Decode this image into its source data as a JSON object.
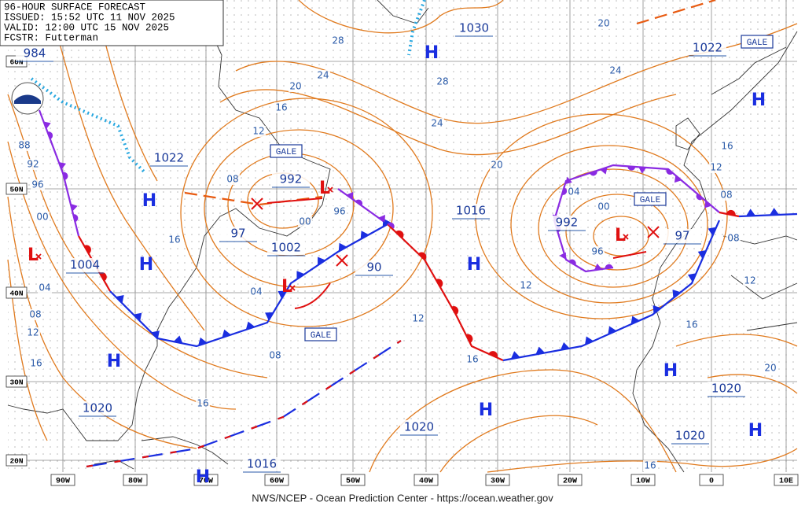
{
  "header": {
    "lines": [
      "96-HOUR SURFACE FORECAST",
      "ISSUED: 15:52 UTC 11 NOV 2025",
      "VALID:  12:00 UTC 15 NOV 2025",
      "FCSTR:  Futterman"
    ]
  },
  "footer": "NWS/NCEP - Ocean Prediction Center - https://ocean.weather.gov",
  "longitudes": [
    "90W",
    "80W",
    "70W",
    "60W",
    "50W",
    "40W",
    "30W",
    "20W",
    "10W",
    "0",
    "10E"
  ],
  "latitudes": [
    "60N",
    "50N",
    "40N",
    "30N",
    "20N"
  ],
  "highs": [
    "H",
    "H",
    "H",
    "H",
    "H",
    "H",
    "H",
    "H",
    "H",
    "H"
  ],
  "lows": [
    "L",
    "L",
    "L",
    "L"
  ],
  "central_pressures": [
    "1030",
    "1022",
    "1022",
    "1016",
    "1002",
    "1004",
    "1020",
    "1020",
    "1020",
    "1020",
    "992",
    "992",
    "97",
    "97",
    "90",
    "984",
    "1016"
  ],
  "gale_warnings": [
    "GALE",
    "GALE",
    "GALE",
    "GALE"
  ],
  "isobar_labels": [
    "28",
    "28",
    "24",
    "24",
    "24",
    "20",
    "20",
    "20",
    "20",
    "16",
    "16",
    "16",
    "16",
    "16",
    "16",
    "16",
    "16",
    "12",
    "12",
    "12",
    "12",
    "12",
    "12",
    "08",
    "08",
    "08",
    "08",
    "08",
    "04",
    "04",
    "04",
    "00",
    "00",
    "00",
    "96",
    "96",
    "96",
    "92",
    "88"
  ]
}
